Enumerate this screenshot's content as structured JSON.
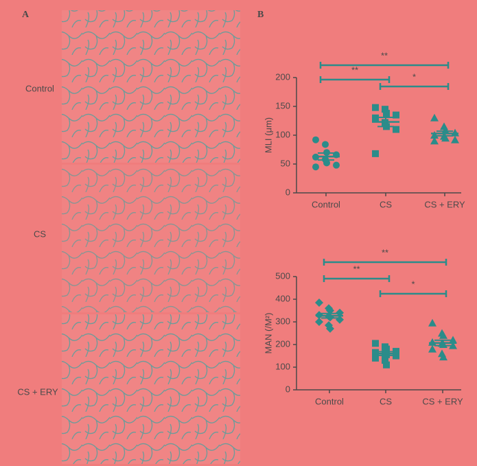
{
  "panel_a": {
    "label": "A",
    "rows": [
      "Control",
      "CS",
      "CS + ERY"
    ]
  },
  "panel_b": {
    "label": "B"
  },
  "chart_data": [
    {
      "type": "dotplot",
      "ylabel": "MLI (μm)",
      "categories": [
        "Control",
        "CS",
        "CS + ERY"
      ],
      "markers": [
        "circle",
        "square",
        "triangle"
      ],
      "color": "#2b8c8a",
      "points": [
        [
          92,
          84,
          70,
          66,
          62,
          58,
          52,
          48,
          45
        ],
        [
          148,
          145,
          138,
          135,
          130,
          122,
          115,
          110,
          68
        ],
        [
          130,
          115,
          108,
          104,
          100,
          98,
          95,
          92,
          90
        ]
      ],
      "means": [
        63,
        123,
        103
      ],
      "sems": [
        6,
        8,
        4
      ],
      "ylim": [
        0,
        200
      ],
      "yticks": [
        0,
        50,
        100,
        150,
        200
      ],
      "annotations": [
        {
          "label": "**",
          "from": 0,
          "to": 2
        },
        {
          "label": "**",
          "from": 0,
          "to": 1
        },
        {
          "label": "*",
          "from": 1,
          "to": 2
        }
      ]
    },
    {
      "type": "dotplot",
      "ylabel": "MAN (/M²)",
      "categories": [
        "Control",
        "CS",
        "CS + ERY"
      ],
      "markers": [
        "diamond",
        "square",
        "triangle"
      ],
      "color": "#2b8c8a",
      "points": [
        [
          385,
          360,
          350,
          340,
          330,
          325,
          320,
          310,
          300,
          285,
          270
        ],
        [
          205,
          190,
          180,
          170,
          165,
          160,
          155,
          150,
          140,
          130,
          110
        ],
        [
          295,
          250,
          240,
          220,
          210,
          205,
          200,
          195,
          180,
          160,
          145
        ]
      ],
      "means": [
        327,
        160,
        207
      ],
      "sems": [
        10,
        8,
        12
      ],
      "ylim": [
        0,
        500
      ],
      "yticks": [
        0,
        100,
        200,
        300,
        400,
        500
      ],
      "annotations": [
        {
          "label": "**",
          "from": 0,
          "to": 2
        },
        {
          "label": "**",
          "from": 0,
          "to": 1
        },
        {
          "label": "*",
          "from": 1,
          "to": 2
        }
      ]
    }
  ]
}
